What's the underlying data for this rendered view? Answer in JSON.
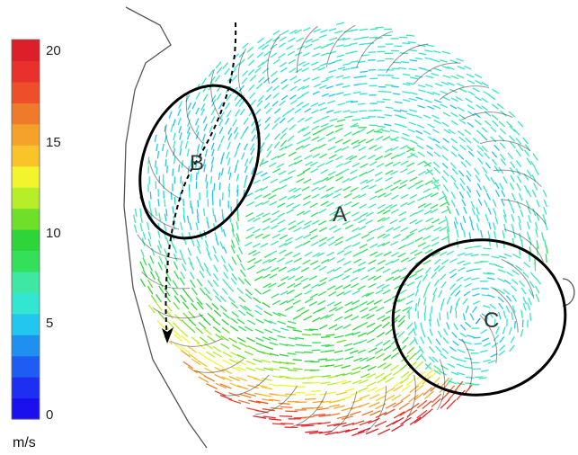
{
  "colorbar": {
    "unit": "m/s",
    "min": 0,
    "max": 20,
    "ticks": [
      {
        "value": 20,
        "label": "20"
      },
      {
        "value": 15,
        "label": "15"
      },
      {
        "value": 10,
        "label": "10"
      },
      {
        "value": 5,
        "label": "5"
      },
      {
        "value": 0,
        "label": "0"
      }
    ],
    "colors": [
      "#1a10ee",
      "#1f2ff2",
      "#1e5cf4",
      "#1f8ff0",
      "#22c6ee",
      "#33e6d2",
      "#3ee8a4",
      "#34e05a",
      "#2fd43a",
      "#6fe02a",
      "#b7ee2a",
      "#f2f52e",
      "#f8c42a",
      "#f5a22c",
      "#f07a2c",
      "#ee4e2a",
      "#e8302c",
      "#dd1f2a"
    ]
  },
  "regions": [
    {
      "label": "A"
    },
    {
      "label": "B"
    },
    {
      "label": "C"
    }
  ],
  "colors": {
    "outline": "#000000",
    "blade": "#3a3a3a",
    "housing": "#555555"
  }
}
